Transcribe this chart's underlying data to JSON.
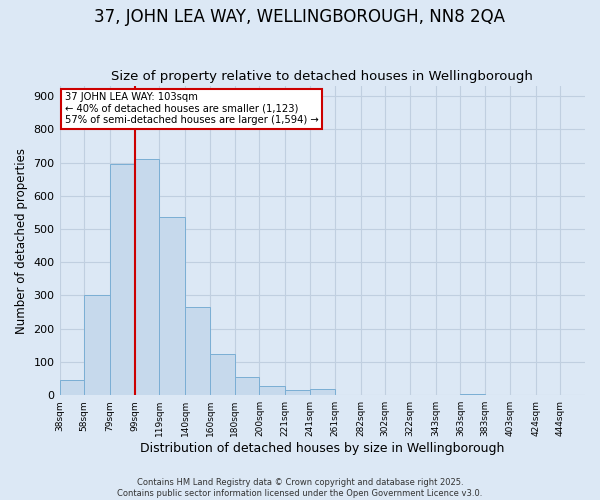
{
  "title": "37, JOHN LEA WAY, WELLINGBOROUGH, NN8 2QA",
  "subtitle": "Size of property relative to detached houses in Wellingborough",
  "xlabel": "Distribution of detached houses by size in Wellingborough",
  "ylabel": "Number of detached properties",
  "bar_labels": [
    "38sqm",
    "58sqm",
    "79sqm",
    "99sqm",
    "119sqm",
    "140sqm",
    "160sqm",
    "180sqm",
    "200sqm",
    "221sqm",
    "241sqm",
    "261sqm",
    "282sqm",
    "302sqm",
    "322sqm",
    "343sqm",
    "363sqm",
    "383sqm",
    "403sqm",
    "424sqm",
    "444sqm"
  ],
  "bar_values": [
    45,
    300,
    695,
    710,
    535,
    265,
    125,
    55,
    28,
    15,
    18,
    2,
    2,
    1,
    0,
    0,
    5,
    0,
    0,
    2,
    2
  ],
  "bar_color": "#c6d9ec",
  "bar_edge_color": "#7aaed4",
  "bg_color": "#dce8f5",
  "grid_color": "#c0cfe0",
  "annotation_line1": "37 JOHN LEA WAY: 103sqm",
  "annotation_line2": "← 40% of detached houses are smaller (1,123)",
  "annotation_line3": "57% of semi-detached houses are larger (1,594) →",
  "vline_x": 99,
  "vline_color": "#cc0000",
  "ylim": [
    0,
    930
  ],
  "yticks": [
    0,
    100,
    200,
    300,
    400,
    500,
    600,
    700,
    800,
    900
  ],
  "footer_line1": "Contains HM Land Registry data © Crown copyright and database right 2025.",
  "footer_line2": "Contains public sector information licensed under the Open Government Licence v3.0.",
  "title_fontsize": 12,
  "subtitle_fontsize": 9.5,
  "xlabel_fontsize": 9,
  "ylabel_fontsize": 8.5,
  "bin_edges": [
    38,
    58,
    79,
    99,
    119,
    140,
    160,
    180,
    200,
    221,
    241,
    261,
    282,
    302,
    322,
    343,
    363,
    383,
    403,
    424,
    444,
    464
  ]
}
